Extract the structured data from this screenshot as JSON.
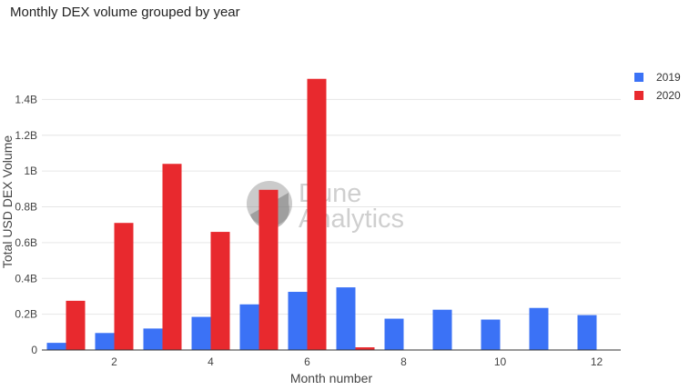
{
  "chart_data": {
    "type": "bar",
    "title": "Monthly DEX volume grouped by year",
    "xlabel": "Month number",
    "ylabel": "Total USD DEX Volume",
    "categories": [
      1,
      2,
      3,
      4,
      5,
      6,
      7,
      8,
      9,
      10,
      11,
      12
    ],
    "series": [
      {
        "name": "2019",
        "color": "#3b72f6",
        "values": [
          0.04,
          0.095,
          0.12,
          0.185,
          0.255,
          0.325,
          0.35,
          0.175,
          0.225,
          0.17,
          0.235,
          0.195
        ]
      },
      {
        "name": "2020",
        "color": "#e8292e",
        "values": [
          0.275,
          0.71,
          1.04,
          0.66,
          0.895,
          1.515,
          0.015,
          null,
          null,
          null,
          null,
          null
        ]
      }
    ],
    "value_unit": "billion USD",
    "ylim": [
      0,
      1.6
    ],
    "yticks": [
      {
        "value": 0,
        "label": "0"
      },
      {
        "value": 0.2,
        "label": "0.2B"
      },
      {
        "value": 0.4,
        "label": "0.4B"
      },
      {
        "value": 0.6,
        "label": "0.6B"
      },
      {
        "value": 0.8,
        "label": "0.8B"
      },
      {
        "value": 1.0,
        "label": "1B"
      },
      {
        "value": 1.2,
        "label": "1.2B"
      },
      {
        "value": 1.4,
        "label": "1.4B"
      }
    ],
    "xticks": [
      2,
      4,
      6,
      8,
      10,
      12
    ],
    "grid": true,
    "legend_position": "top-right"
  },
  "watermark": {
    "line1": "Dune",
    "line2": "Analytics"
  }
}
